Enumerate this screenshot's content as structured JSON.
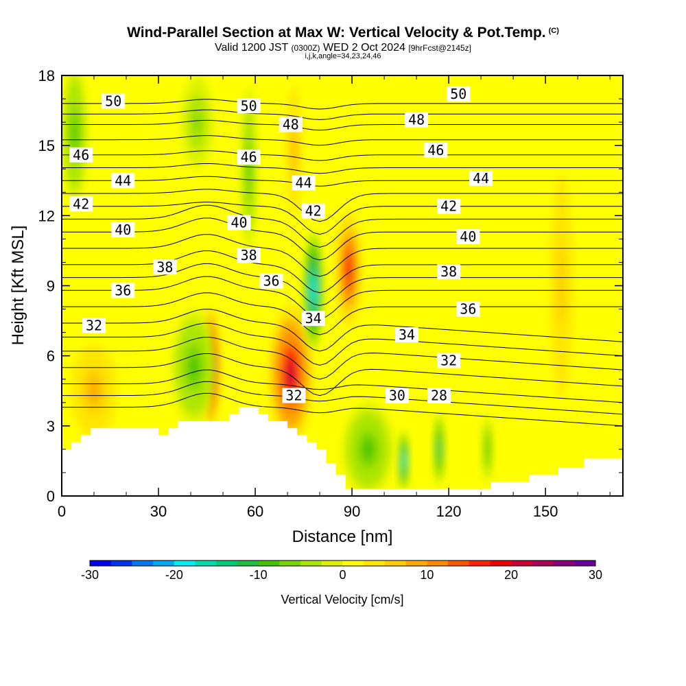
{
  "chart_data": {
    "type": "contour-section",
    "title": "Wind-Parallel Section at Max W: Vertical Velocity & Pot.Temp.",
    "title_tag": "(C)",
    "subtitle": {
      "valid": "Valid 1200 JST",
      "utc": "(0300Z)",
      "date": "WED 2 Oct 2024",
      "fcst": "[9hrFcst@2145z]"
    },
    "indices": "i,j,k,angle=34,23,24,46",
    "xlabel": "Distance [nm]",
    "ylabel": "Height [Kft MSL]",
    "xlim": [
      0,
      174
    ],
    "ylim": [
      0,
      18
    ],
    "xticks": [
      0,
      30,
      60,
      90,
      120,
      150
    ],
    "yticks": [
      0,
      3,
      6,
      9,
      12,
      15,
      18
    ],
    "colorbar": {
      "title": "Vertical Velocity [cm/s]",
      "ticks": [
        -30,
        -20,
        -10,
        0,
        10,
        20,
        30
      ],
      "colors": [
        "#0000ee",
        "#0033f0",
        "#0077f0",
        "#00aaf0",
        "#00eeee",
        "#00ddaa",
        "#00cc77",
        "#22bb44",
        "#44c400",
        "#77d400",
        "#aae600",
        "#ddf200",
        "#ffff00",
        "#ffe600",
        "#ffcc00",
        "#ffaa00",
        "#ff8800",
        "#ff5500",
        "#ff2200",
        "#ee0000",
        "#cc0033",
        "#aa0055",
        "#880077",
        "#660099"
      ]
    },
    "theta_labels": [
      {
        "text": "50",
        "x": 16,
        "y": 16.9
      },
      {
        "text": "50",
        "x": 58,
        "y": 16.7
      },
      {
        "text": "50",
        "x": 123,
        "y": 17.2
      },
      {
        "text": "48",
        "x": 71,
        "y": 15.9
      },
      {
        "text": "48",
        "x": 110,
        "y": 16.1
      },
      {
        "text": "46",
        "x": 6,
        "y": 14.6
      },
      {
        "text": "46",
        "x": 58,
        "y": 14.5
      },
      {
        "text": "46",
        "x": 116,
        "y": 14.8
      },
      {
        "text": "44",
        "x": 19,
        "y": 13.5
      },
      {
        "text": "44",
        "x": 75,
        "y": 13.4
      },
      {
        "text": "44",
        "x": 130,
        "y": 13.6
      },
      {
        "text": "42",
        "x": 6,
        "y": 12.5
      },
      {
        "text": "42",
        "x": 78,
        "y": 12.2
      },
      {
        "text": "42",
        "x": 120,
        "y": 12.4
      },
      {
        "text": "40",
        "x": 19,
        "y": 11.4
      },
      {
        "text": "40",
        "x": 55,
        "y": 11.7
      },
      {
        "text": "40",
        "x": 126,
        "y": 11.1
      },
      {
        "text": "38",
        "x": 32,
        "y": 9.8
      },
      {
        "text": "38",
        "x": 58,
        "y": 10.3
      },
      {
        "text": "38",
        "x": 120,
        "y": 9.6
      },
      {
        "text": "36",
        "x": 19,
        "y": 8.8
      },
      {
        "text": "36",
        "x": 65,
        "y": 9.2
      },
      {
        "text": "36",
        "x": 126,
        "y": 8.0
      },
      {
        "text": "34",
        "x": 78,
        "y": 7.6
      },
      {
        "text": "34",
        "x": 107,
        "y": 6.9
      },
      {
        "text": "32",
        "x": 10,
        "y": 7.3
      },
      {
        "text": "32",
        "x": 72,
        "y": 4.3
      },
      {
        "text": "32",
        "x": 120,
        "y": 5.8
      },
      {
        "text": "30",
        "x": 104,
        "y": 4.3
      },
      {
        "text": "28",
        "x": 117,
        "y": 4.3
      }
    ],
    "terrain": [
      [
        0,
        2
      ],
      [
        3,
        2
      ],
      [
        3,
        2.3
      ],
      [
        6,
        2.3
      ],
      [
        6,
        2.6
      ],
      [
        9,
        2.6
      ],
      [
        9,
        2.9
      ],
      [
        30,
        2.9
      ],
      [
        30,
        2.6
      ],
      [
        33,
        2.6
      ],
      [
        33,
        2.9
      ],
      [
        36,
        2.9
      ],
      [
        36,
        3.2
      ],
      [
        52,
        3.2
      ],
      [
        52,
        3.5
      ],
      [
        55,
        3.5
      ],
      [
        55,
        3.8
      ],
      [
        61,
        3.8
      ],
      [
        61,
        3.5
      ],
      [
        64,
        3.5
      ],
      [
        64,
        3.2
      ],
      [
        70,
        3.2
      ],
      [
        70,
        2.9
      ],
      [
        73,
        2.9
      ],
      [
        73,
        2.6
      ],
      [
        76,
        2.6
      ],
      [
        76,
        2.3
      ],
      [
        79,
        2.3
      ],
      [
        79,
        2
      ],
      [
        82,
        2
      ],
      [
        82,
        1.4
      ],
      [
        85,
        1.4
      ],
      [
        85,
        0.9
      ],
      [
        88,
        0.9
      ],
      [
        88,
        0.3
      ],
      [
        133,
        0.3
      ],
      [
        133,
        0.6
      ],
      [
        145,
        0.6
      ],
      [
        145,
        0.9
      ],
      [
        154,
        0.9
      ],
      [
        154,
        1.2
      ],
      [
        162,
        1.2
      ],
      [
        162,
        1.6
      ],
      [
        174,
        1.6
      ]
    ],
    "w_features": [
      {
        "x": 46,
        "y": 5.5,
        "w": 26,
        "rx": 3,
        "ry": 2.5
      },
      {
        "x": 71,
        "y": 5.2,
        "w": 20,
        "rx": 7,
        "ry": 3
      },
      {
        "x": 89,
        "y": 9.7,
        "w": 18,
        "rx": 4,
        "ry": 2.5
      },
      {
        "x": 78,
        "y": 8.8,
        "w": -20,
        "rx": 3,
        "ry": 2.5
      },
      {
        "x": 41,
        "y": 5.5,
        "w": -8,
        "rx": 7,
        "ry": 2.5
      },
      {
        "x": 106,
        "y": 1.5,
        "w": -20,
        "rx": 1.5,
        "ry": 1.3
      },
      {
        "x": 117,
        "y": 2,
        "w": -15,
        "rx": 1.5,
        "ry": 1.5
      },
      {
        "x": 95,
        "y": 2,
        "w": -8,
        "rx": 8,
        "ry": 2
      },
      {
        "x": 132,
        "y": 2,
        "w": -10,
        "rx": 1.5,
        "ry": 1.5
      },
      {
        "x": 10,
        "y": 4.5,
        "w": 8,
        "rx": 9,
        "ry": 2.5
      },
      {
        "x": 4,
        "y": 15.5,
        "w": -8,
        "rx": 4,
        "ry": 3
      },
      {
        "x": 42,
        "y": 16,
        "w": -6,
        "rx": 5,
        "ry": 2
      },
      {
        "x": 72,
        "y": 14.8,
        "w": 8,
        "rx": 3,
        "ry": 3.5
      },
      {
        "x": 58,
        "y": 14,
        "w": -8,
        "rx": 2.5,
        "ry": 3.5
      },
      {
        "x": 155,
        "y": 9,
        "w": 6,
        "rx": 6,
        "ry": 8
      }
    ]
  }
}
